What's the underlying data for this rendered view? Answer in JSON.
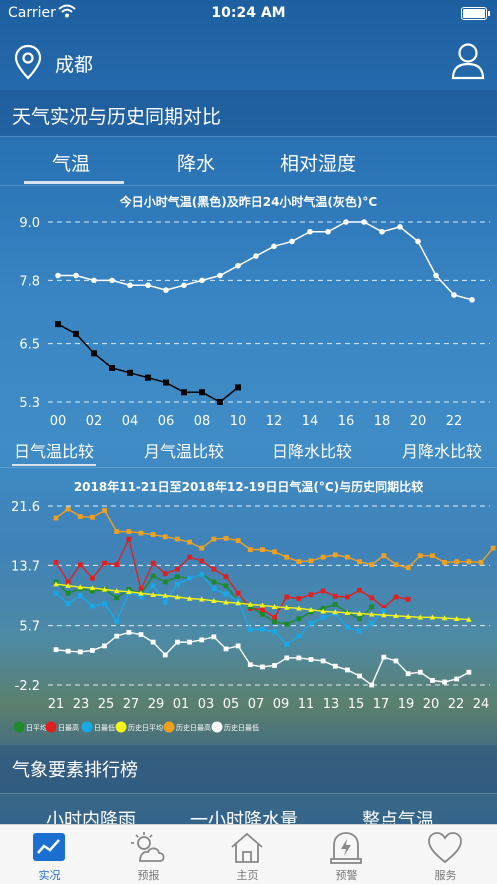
{
  "status": {
    "carrier": "Carrier",
    "time": "10:24 AM"
  },
  "header": {
    "city": "成都"
  },
  "section": {
    "title": "天气实况与历史同期对比"
  },
  "tabs": [
    {
      "label": "气温"
    },
    {
      "label": "降水"
    },
    {
      "label": "相对湿度"
    }
  ],
  "subtabs": [
    {
      "label": "日气温比较"
    },
    {
      "label": "月气温比较"
    },
    {
      "label": "日降水比较"
    },
    {
      "label": "月降水比较"
    }
  ],
  "ranking": {
    "title": "气象要素排行榜",
    "tabs": [
      "小时内降雨",
      "一小时降水量",
      "整点气温"
    ]
  },
  "tabbar": [
    {
      "label": "实况"
    },
    {
      "label": "预报"
    },
    {
      "label": "主页"
    },
    {
      "label": "预警"
    },
    {
      "label": "服务"
    }
  ],
  "colors": {
    "accent": "#1a6fd0",
    "today": "#000000",
    "yesterday": "#ffffff",
    "daily_avg": "#1e8a2c",
    "daily_max": "#e02020",
    "daily_min": "#1aa7e8",
    "hist_avg": "#f5f51a",
    "hist_max": "#f0a020",
    "hist_min": "#ffffff"
  },
  "chart_data": [
    {
      "type": "line",
      "title": "今日小时气温(黑色)及昨日24小时气温(灰色)°C",
      "x_ticks": [
        "00",
        "02",
        "04",
        "06",
        "08",
        "10",
        "12",
        "14",
        "16",
        "18",
        "20",
        "22"
      ],
      "y_ticks": [
        "9.0",
        "7.8",
        "6.5",
        "5.3"
      ],
      "ylim": [
        5.3,
        9.0
      ],
      "xlim": [
        0,
        23
      ],
      "series": [
        {
          "key": "yesterday",
          "x": [
            0,
            1,
            2,
            3,
            4,
            5,
            6,
            7,
            8,
            9,
            10,
            11,
            12,
            13,
            14,
            15,
            16,
            17,
            18,
            19,
            20,
            21,
            22,
            23
          ],
          "values": [
            7.9,
            7.9,
            7.8,
            7.8,
            7.7,
            7.7,
            7.6,
            7.7,
            7.8,
            7.9,
            8.1,
            8.3,
            8.5,
            8.6,
            8.8,
            8.8,
            9.0,
            9.0,
            8.8,
            8.9,
            8.6,
            7.9,
            7.5,
            7.4
          ]
        },
        {
          "key": "today",
          "x": [
            0,
            1,
            2,
            3,
            4,
            5,
            6,
            7,
            8,
            9,
            10
          ],
          "values": [
            6.9,
            6.7,
            6.3,
            6.0,
            5.9,
            5.8,
            5.7,
            5.5,
            5.5,
            5.3,
            5.6
          ]
        }
      ]
    },
    {
      "type": "line",
      "title": "2018年11-21日至2018年12-19日日气温(°C)与历史同期比较",
      "x_ticks": [
        "21",
        "23",
        "25",
        "27",
        "29",
        "01",
        "03",
        "05",
        "07",
        "09",
        "11",
        "13",
        "15",
        "17",
        "19",
        "20",
        "22",
        "24"
      ],
      "y_ticks": [
        "21.6",
        "13.7",
        "5.7",
        "-2.2"
      ],
      "ylim": [
        -2.2,
        21.6
      ],
      "legend": [
        "日平均",
        "日最高",
        "日最低",
        "历史日平均",
        "历史日最高",
        "历史日最低"
      ],
      "series": [
        {
          "key": "hist_max",
          "values": [
            20.0,
            21.2,
            20.2,
            20.1,
            21.0,
            18.2,
            18.2,
            18.0,
            17.8,
            17.5,
            17.2,
            16.8,
            16.0,
            17.2,
            17.3,
            17.0,
            15.8,
            15.8,
            15.5,
            14.8,
            14.2,
            14.3,
            14.8,
            15.1,
            14.8,
            14.2,
            13.8,
            15.0,
            13.8,
            13.4,
            15.0,
            15.0,
            14.1,
            14.2,
            14.2,
            14.1,
            16.0
          ]
        },
        {
          "key": "daily_max",
          "values": [
            14.1,
            11.5,
            13.8,
            12.0,
            14.0,
            13.8,
            17.2,
            10.5,
            14.0,
            12.6,
            13.2,
            14.8,
            14.3,
            13.2,
            12.2,
            10.0,
            8.0,
            7.8,
            6.8,
            9.5,
            9.3,
            9.8,
            10.3,
            9.6,
            9.5,
            10.4,
            9.4,
            8.1,
            9.5,
            9.2
          ]
        },
        {
          "key": "daily_avg",
          "values": [
            11.5,
            10.0,
            10.6,
            10.3,
            10.5,
            9.4,
            10.5,
            10.0,
            12.3,
            11.5,
            12.2,
            12.0,
            12.5,
            11.5,
            11.0,
            9.0,
            8.2,
            7.2,
            6.2,
            5.9,
            6.6,
            7.5,
            8.0,
            8.5,
            7.4,
            6.6,
            8.2
          ]
        },
        {
          "key": "daily_min",
          "values": [
            10.0,
            8.6,
            9.7,
            8.3,
            8.6,
            6.3,
            10.1,
            9.5,
            11.0,
            8.8,
            11.2,
            12.0,
            12.5,
            10.6,
            9.9,
            9.0,
            5.2,
            5.2,
            4.9,
            3.2,
            4.3,
            6.0,
            6.8,
            7.3,
            5.5,
            5.0,
            6.0,
            7.7
          ]
        },
        {
          "key": "hist_avg",
          "values": [
            11.2,
            11.0,
            10.8,
            10.7,
            10.5,
            10.3,
            10.2,
            10.0,
            9.8,
            9.7,
            9.5,
            9.3,
            9.2,
            9.0,
            8.8,
            8.7,
            8.5,
            8.4,
            8.2,
            8.1,
            8.0,
            7.8,
            7.6,
            7.5,
            7.4,
            7.3,
            7.2,
            7.1,
            7.0,
            6.9,
            6.8,
            6.8,
            6.7,
            6.6,
            6.5
          ]
        },
        {
          "key": "hist_min",
          "values": [
            2.5,
            2.3,
            2.2,
            2.4,
            3.0,
            4.3,
            4.8,
            4.5,
            3.5,
            1.8,
            3.5,
            3.5,
            3.8,
            4.2,
            2.6,
            3.0,
            0.5,
            0.2,
            0.4,
            1.4,
            1.4,
            1.2,
            1.0,
            0.3,
            -0.2,
            -1.0,
            -2.2,
            1.5,
            1.0,
            -0.7,
            -0.5,
            -1.6,
            -1.8,
            -1.4,
            -0.5
          ]
        }
      ]
    }
  ]
}
